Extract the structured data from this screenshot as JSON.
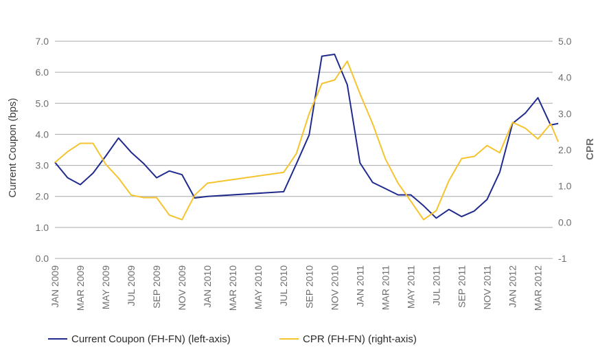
{
  "chart_data": {
    "type": "line",
    "title": "",
    "ylabel_left": "Current Coupon (bps)",
    "ylabel_right": "CPR",
    "ylim_left": [
      0,
      7
    ],
    "ylim_right": [
      -1,
      5
    ],
    "yticks_left": [
      "0.0",
      "1.0",
      "2.0",
      "3.0",
      "4.0",
      "5.0",
      "6.0",
      "7.0"
    ],
    "yticks_right": [
      "-1",
      "0.0",
      "1.0",
      "2.0",
      "3.0",
      "4.0",
      "5.0"
    ],
    "grid": true,
    "legend_position": "bottom",
    "x": [
      "JAN 2009",
      "FEB 2009",
      "MAR 2009",
      "APR 2009",
      "MAY 2009",
      "JUN 2009",
      "JUL 2009",
      "AUG 2009",
      "SEP 2009",
      "OCT 2009",
      "NOV 2009",
      "DEC 2009",
      "JAN 2010",
      "FEB 2010",
      "MAR 2010",
      "APR 2010",
      "MAY 2010",
      "JUN 2010",
      "JUL 2010",
      "AUG 2010",
      "SEP 2010",
      "OCT 2010",
      "NOV 2010",
      "DEC 2010",
      "JAN 2011",
      "FEB 2011",
      "MAR 2011",
      "APR 2011",
      "MAY 2011",
      "JUN 2011",
      "JUL 2011",
      "AUG 2011",
      "SEP 2011",
      "OCT 2011",
      "NOV 2011",
      "DEC 2011",
      "JAN 2012",
      "FEB 2012",
      "MAR 2012",
      "APR 2012"
    ],
    "x_tick_labels": [
      "JAN 2009",
      "MAR 2009",
      "MAY 2009",
      "JUL 2009",
      "SEP 2009",
      "NOV 2009",
      "JAN 2010",
      "MAR 2010",
      "MAY 2010",
      "JUL 2010",
      "SEP 2010",
      "NOV 2010",
      "JAN 2011",
      "MAR 2011",
      "MAY 2011",
      "JUL 2011",
      "SEP 2011",
      "NOV 2011",
      "JAN 2012",
      "MAR 2012"
    ],
    "series": [
      {
        "name": "Current Coupon (FH-FN) (left-axis)",
        "axis": "left",
        "color": "#1f2a8c",
        "x": [
          0,
          1,
          2,
          3,
          4,
          5,
          6,
          7,
          8,
          9,
          10,
          11,
          12,
          18,
          19,
          20,
          21,
          22,
          23,
          24,
          25,
          26,
          27,
          28,
          29,
          30,
          31,
          32,
          33,
          34,
          35,
          36,
          37,
          38,
          39,
          39.6
        ],
        "values": [
          3.1,
          2.6,
          2.38,
          2.75,
          3.3,
          3.88,
          3.42,
          3.05,
          2.6,
          2.82,
          2.7,
          1.95,
          2.0,
          2.15,
          3.05,
          3.98,
          6.52,
          6.58,
          5.6,
          3.08,
          2.45,
          2.25,
          2.05,
          2.05,
          1.7,
          1.3,
          1.58,
          1.35,
          1.53,
          1.9,
          2.78,
          4.35,
          4.68,
          5.18,
          4.3,
          4.35
        ]
      },
      {
        "name": "CPR (FH-FN) (right-axis)",
        "axis": "right",
        "color": "#f5c32c",
        "x": [
          0,
          1,
          2,
          3,
          4,
          5,
          6,
          7,
          8,
          9,
          10,
          11,
          12,
          18,
          19,
          20,
          21,
          22,
          23,
          24,
          25,
          26,
          27,
          28,
          29,
          30,
          31,
          32,
          33,
          34,
          35,
          36,
          37,
          38,
          39,
          39.6
        ],
        "values": [
          1.65,
          1.95,
          2.18,
          2.18,
          1.6,
          1.22,
          0.75,
          0.68,
          0.68,
          0.2,
          0.07,
          0.75,
          1.08,
          1.38,
          1.9,
          3.0,
          3.83,
          3.93,
          4.45,
          3.55,
          2.72,
          1.75,
          1.08,
          0.58,
          0.07,
          0.32,
          1.15,
          1.76,
          1.82,
          2.12,
          1.92,
          2.76,
          2.6,
          2.3,
          2.72,
          2.22
        ]
      }
    ]
  }
}
